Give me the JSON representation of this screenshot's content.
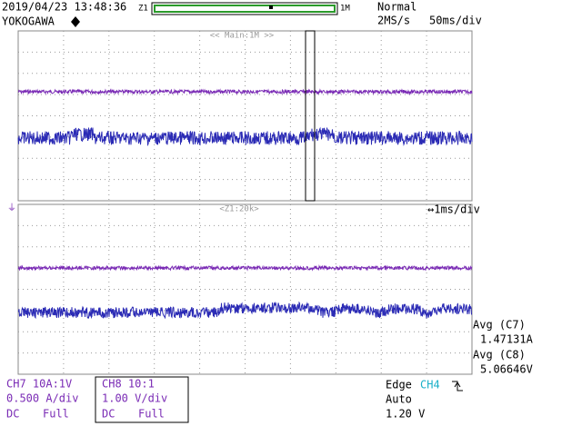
{
  "header": {
    "datetime": "2019/04/23 13:48:36",
    "zoom_left": "Z1",
    "zoom_right": "1M",
    "mode": "Normal",
    "brand": "YOKOGAWA",
    "sample_rate": "2MS/s",
    "timebase": "50ms/div"
  },
  "main_panel": {
    "label": "<< Main:1M >>"
  },
  "zoom_panel": {
    "label": "<Z1:20k>",
    "timebase": "↔1ms/div"
  },
  "measurements": [
    {
      "label": "Avg (C7)",
      "value": "1.47131A"
    },
    {
      "label": "Avg (C8)",
      "value": "5.06646V"
    }
  ],
  "channels": [
    {
      "name": "CH7 10A:1V",
      "scale": "0.500 A/div",
      "coupling": "DC",
      "bandwidth": "Full"
    },
    {
      "name": "CH8 10:1",
      "scale": "1.00 V/div",
      "coupling": "DC",
      "bandwidth": "Full"
    }
  ],
  "trigger": {
    "type": "Edge",
    "source": "CH4",
    "mode": "Auto",
    "level": "1.20 V"
  }
}
